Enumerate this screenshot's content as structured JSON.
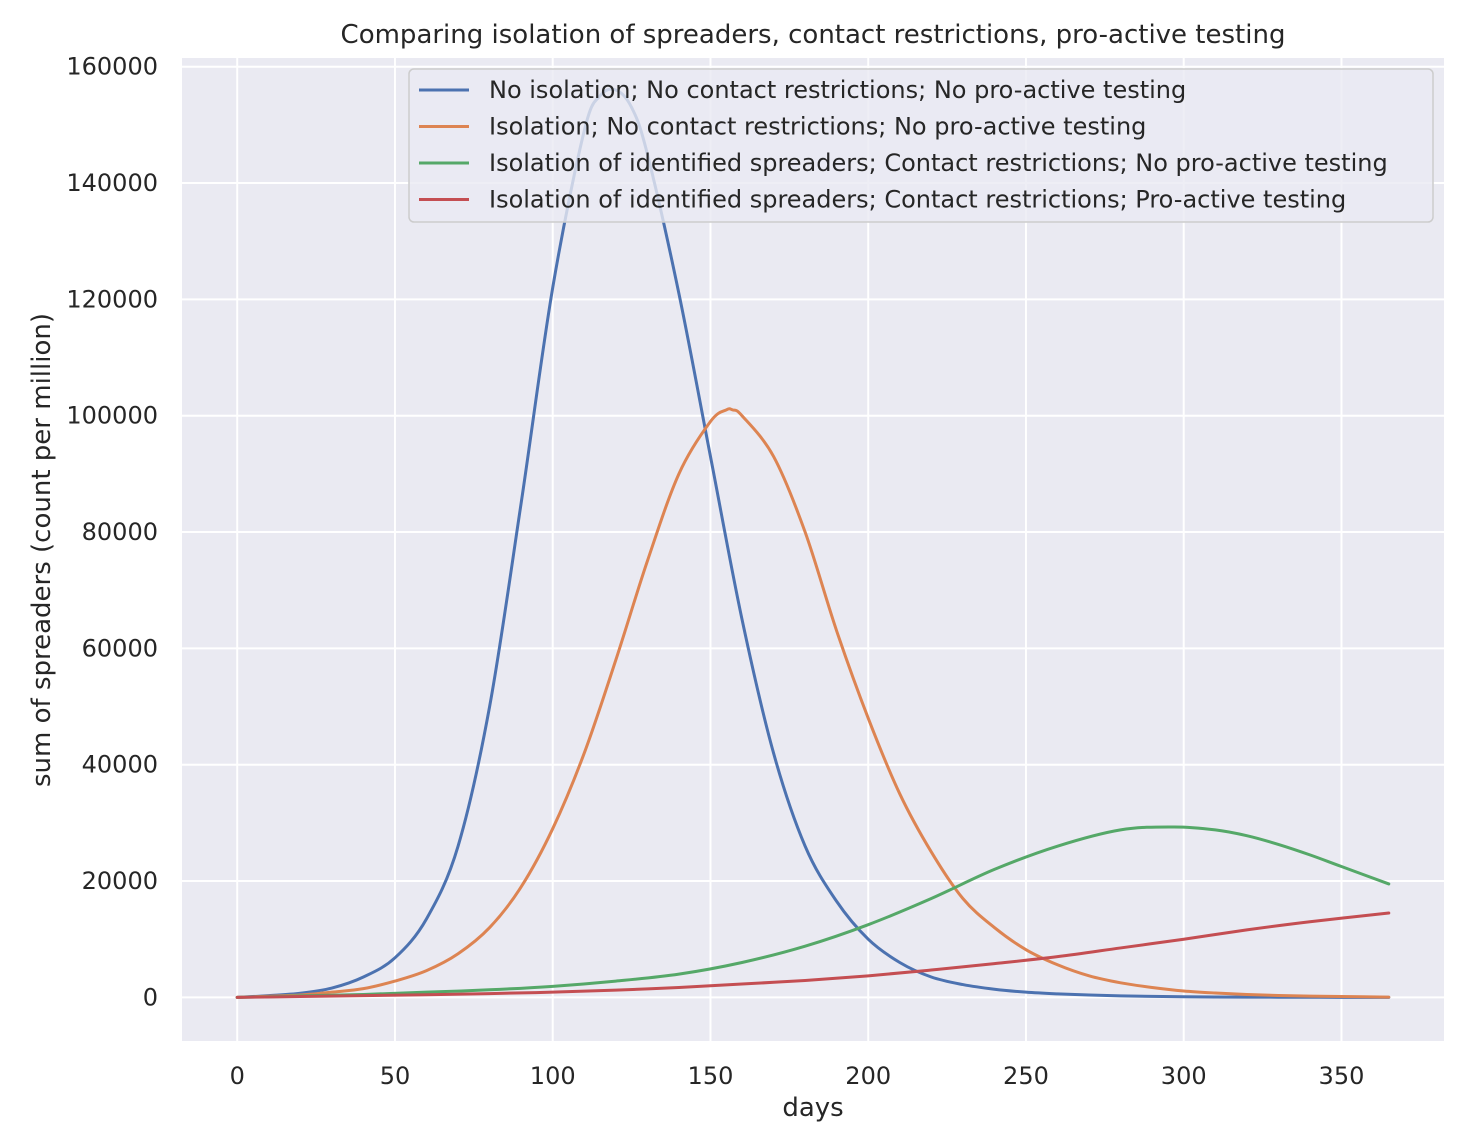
{
  "chart_data": {
    "type": "line",
    "title": "Comparing isolation of spreaders, contact restrictions, pro-active testing",
    "xlabel": "days",
    "ylabel": "sum of spreaders (count per million)",
    "xlim": [
      -17.5,
      382.5
    ],
    "ylim": [
      -7500,
      161500
    ],
    "xticks": [
      0,
      50,
      100,
      150,
      200,
      250,
      300,
      350
    ],
    "yticks": [
      0,
      20000,
      40000,
      60000,
      80000,
      100000,
      120000,
      140000,
      160000
    ],
    "grid": true,
    "legend_position": "top-right",
    "colors": {
      "background": "#eaeaf2",
      "grid": "#ffffff",
      "series": [
        "#4c72b0",
        "#dd8452",
        "#55a868",
        "#c44e52"
      ]
    },
    "series": [
      {
        "name": "No isolation; No contact restrictions; No pro-active testing",
        "x": [
          0,
          10,
          20,
          30,
          40,
          50,
          60,
          70,
          80,
          90,
          100,
          110,
          115,
          120,
          125,
          130,
          140,
          150,
          160,
          170,
          180,
          190,
          200,
          210,
          220,
          230,
          240,
          250,
          260,
          270,
          280,
          290,
          300,
          310,
          320,
          330,
          340,
          350,
          365
        ],
        "y": [
          0,
          300,
          700,
          1600,
          3500,
          6800,
          13500,
          26000,
          50000,
          85000,
          122000,
          149000,
          155000,
          156000,
          153000,
          145000,
          121000,
          93000,
          65000,
          42000,
          26000,
          16500,
          10000,
          6000,
          3500,
          2200,
          1400,
          900,
          600,
          400,
          250,
          170,
          110,
          70,
          50,
          30,
          20,
          10,
          0
        ]
      },
      {
        "name": "Isolation; No contact restrictions; No pro-active testing",
        "x": [
          0,
          10,
          20,
          30,
          40,
          50,
          60,
          70,
          80,
          90,
          100,
          110,
          120,
          130,
          140,
          150,
          155,
          157,
          160,
          170,
          180,
          190,
          200,
          210,
          220,
          230,
          240,
          250,
          260,
          270,
          280,
          290,
          300,
          310,
          320,
          330,
          340,
          350,
          365
        ],
        "y": [
          0,
          200,
          400,
          900,
          1500,
          2800,
          4600,
          7500,
          12000,
          19000,
          29000,
          42000,
          58000,
          75000,
          90000,
          99000,
          101000,
          101000,
          100000,
          93000,
          80000,
          63000,
          48000,
          35000,
          25000,
          17000,
          12000,
          8200,
          5600,
          3700,
          2500,
          1700,
          1100,
          750,
          500,
          330,
          220,
          140,
          50
        ]
      },
      {
        "name": "Isolation of identified spreaders; Contact restrictions; No pro-active testing",
        "x": [
          0,
          20,
          40,
          60,
          80,
          100,
          120,
          140,
          160,
          180,
          200,
          220,
          240,
          260,
          280,
          297,
          310,
          320,
          330,
          340,
          350,
          365
        ],
        "y": [
          0,
          250,
          500,
          900,
          1300,
          1900,
          2800,
          4000,
          6000,
          8800,
          12500,
          17000,
          22000,
          26000,
          28800,
          29300,
          28800,
          27800,
          26300,
          24500,
          22500,
          19500
        ]
      },
      {
        "name": "Isolation of identified spreaders; Contact restrictions; Pro-active testing",
        "x": [
          0,
          20,
          40,
          60,
          80,
          100,
          120,
          140,
          160,
          180,
          200,
          220,
          240,
          260,
          280,
          300,
          320,
          340,
          365
        ],
        "y": [
          0,
          150,
          300,
          450,
          650,
          900,
          1250,
          1700,
          2300,
          2900,
          3700,
          4700,
          5800,
          7000,
          8500,
          10000,
          11600,
          13000,
          14500
        ]
      }
    ]
  }
}
